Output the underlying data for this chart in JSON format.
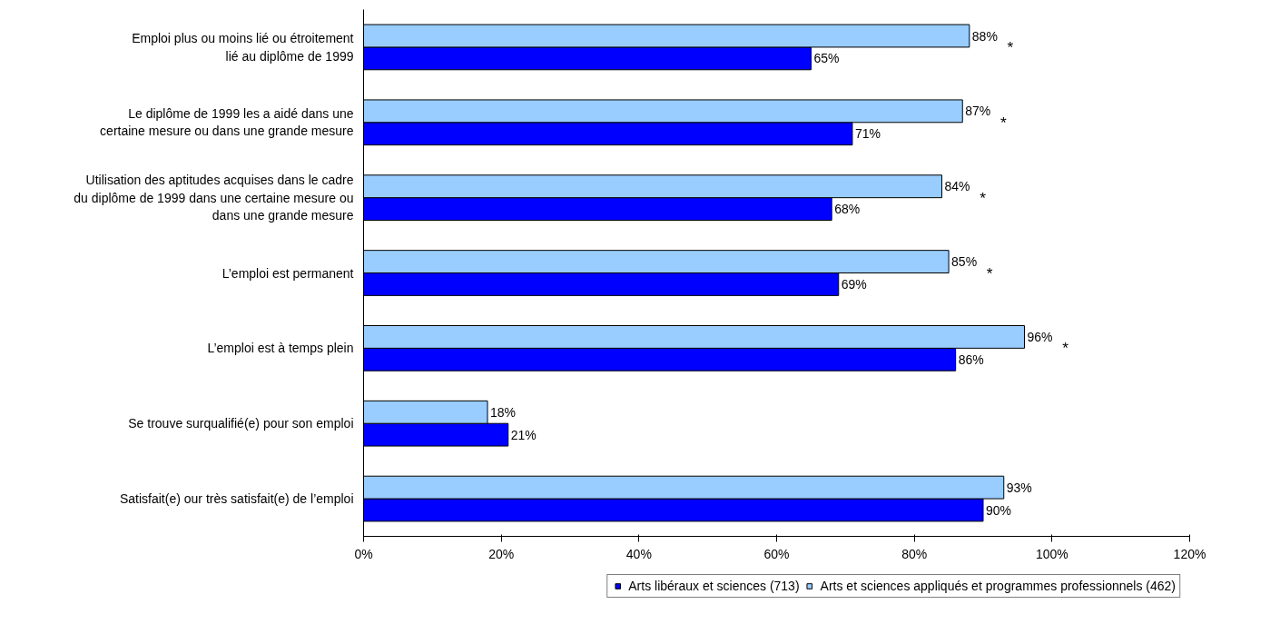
{
  "chart_data": {
    "type": "bar",
    "orientation": "horizontal",
    "categories": [
      "Emploi plus ou moins lié ou étroitement\nlié au diplôme de 1999",
      "Le diplôme de 1999 les a aidé dans une\ncertaine mesure ou dans une grande mesure",
      "Utilisation des aptitudes acquises dans le cadre\ndu diplôme de 1999 dans une certaine mesure ou\ndans une grande mesure",
      "L’emploi est permanent",
      "L’emploi est à temps plein",
      "Se trouve surqualifié(e) pour son emploi",
      "Satisfait(e) our très satisfait(e) de l’emploi"
    ],
    "series": [
      {
        "name": "Arts libéraux et sciences (713)",
        "color": "#0000ff",
        "values": [
          65,
          71,
          68,
          69,
          86,
          21,
          90
        ]
      },
      {
        "name": "Arts et sciences appliqués et programmes professionnels (462)",
        "color": "#99ccff",
        "values": [
          88,
          87,
          84,
          85,
          96,
          18,
          93
        ]
      }
    ],
    "value_labels": [
      [
        "65%",
        "71%",
        "68%",
        "69%",
        "86%",
        "21%",
        "90%"
      ],
      [
        "88%",
        "87%",
        "84%",
        "85%",
        "96%",
        "18%",
        "93%"
      ]
    ],
    "xlim": [
      0,
      120
    ],
    "xticks": [
      {
        "value": 0,
        "label": "0%"
      },
      {
        "value": 20,
        "label": "20%"
      },
      {
        "value": 40,
        "label": "40%"
      },
      {
        "value": 60,
        "label": "60%"
      },
      {
        "value": 80,
        "label": "80%"
      },
      {
        "value": 100,
        "label": "100%"
      },
      {
        "value": 120,
        "label": "120%"
      }
    ],
    "annotations": [
      "*",
      "*",
      "*",
      "*",
      "*"
    ],
    "grid": false,
    "legend": "bottom right"
  }
}
